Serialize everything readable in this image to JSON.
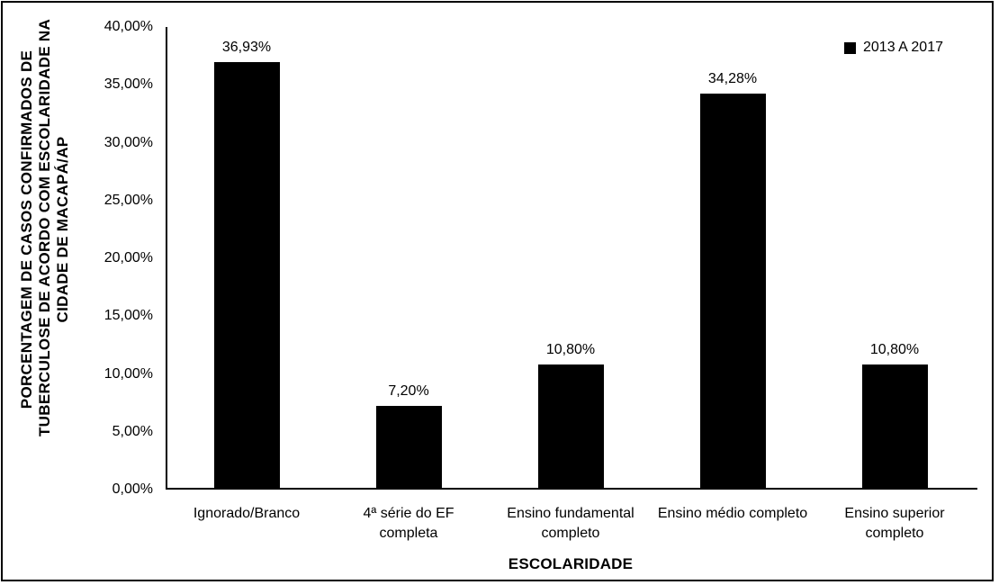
{
  "figure": {
    "background": "#ffffff",
    "border_color": "#000000"
  },
  "legend": {
    "label": "2013 A 2017",
    "marker_color": "#000000",
    "position": "top-right"
  },
  "chart_data": {
    "type": "bar",
    "title": "",
    "categories": [
      "Ignorado/Branco",
      "4ª série do EF completa",
      "Ensino fundamental completo",
      "Ensino médio completo",
      "Ensino superior completo"
    ],
    "values": [
      36.93,
      7.2,
      10.8,
      34.28,
      10.8
    ],
    "value_labels": [
      "36,93%",
      "7,20%",
      "10,80%",
      "34,28%",
      "10,80%"
    ],
    "series_name": "2013 A 2017",
    "xlabel": "ESCOLARIDADE",
    "ylabel": "PORCENTAGEM DE CASOS CONFIRMADOS DE TUBERCULOSE DE ACORDO COM ESCOLARIDADE NA CIDADE DE MACAPÁ/AP",
    "ylabel_lines": [
      "PORCENTAGEM DE CASOS CONFIRMADOS DE",
      "TUBERCULOSE DE ACORDO COM ESCOLARIDADE NA",
      "CIDADE DE MACAPÁ/AP"
    ],
    "ylim": [
      0,
      40
    ],
    "ytick_step": 5,
    "ytick_labels": [
      "0,00%",
      "5,00%",
      "10,00%",
      "15,00%",
      "20,00%",
      "25,00%",
      "30,00%",
      "35,00%",
      "40,00%"
    ],
    "bar_color": "#000000",
    "grid": false,
    "legend_position": "top-right"
  }
}
